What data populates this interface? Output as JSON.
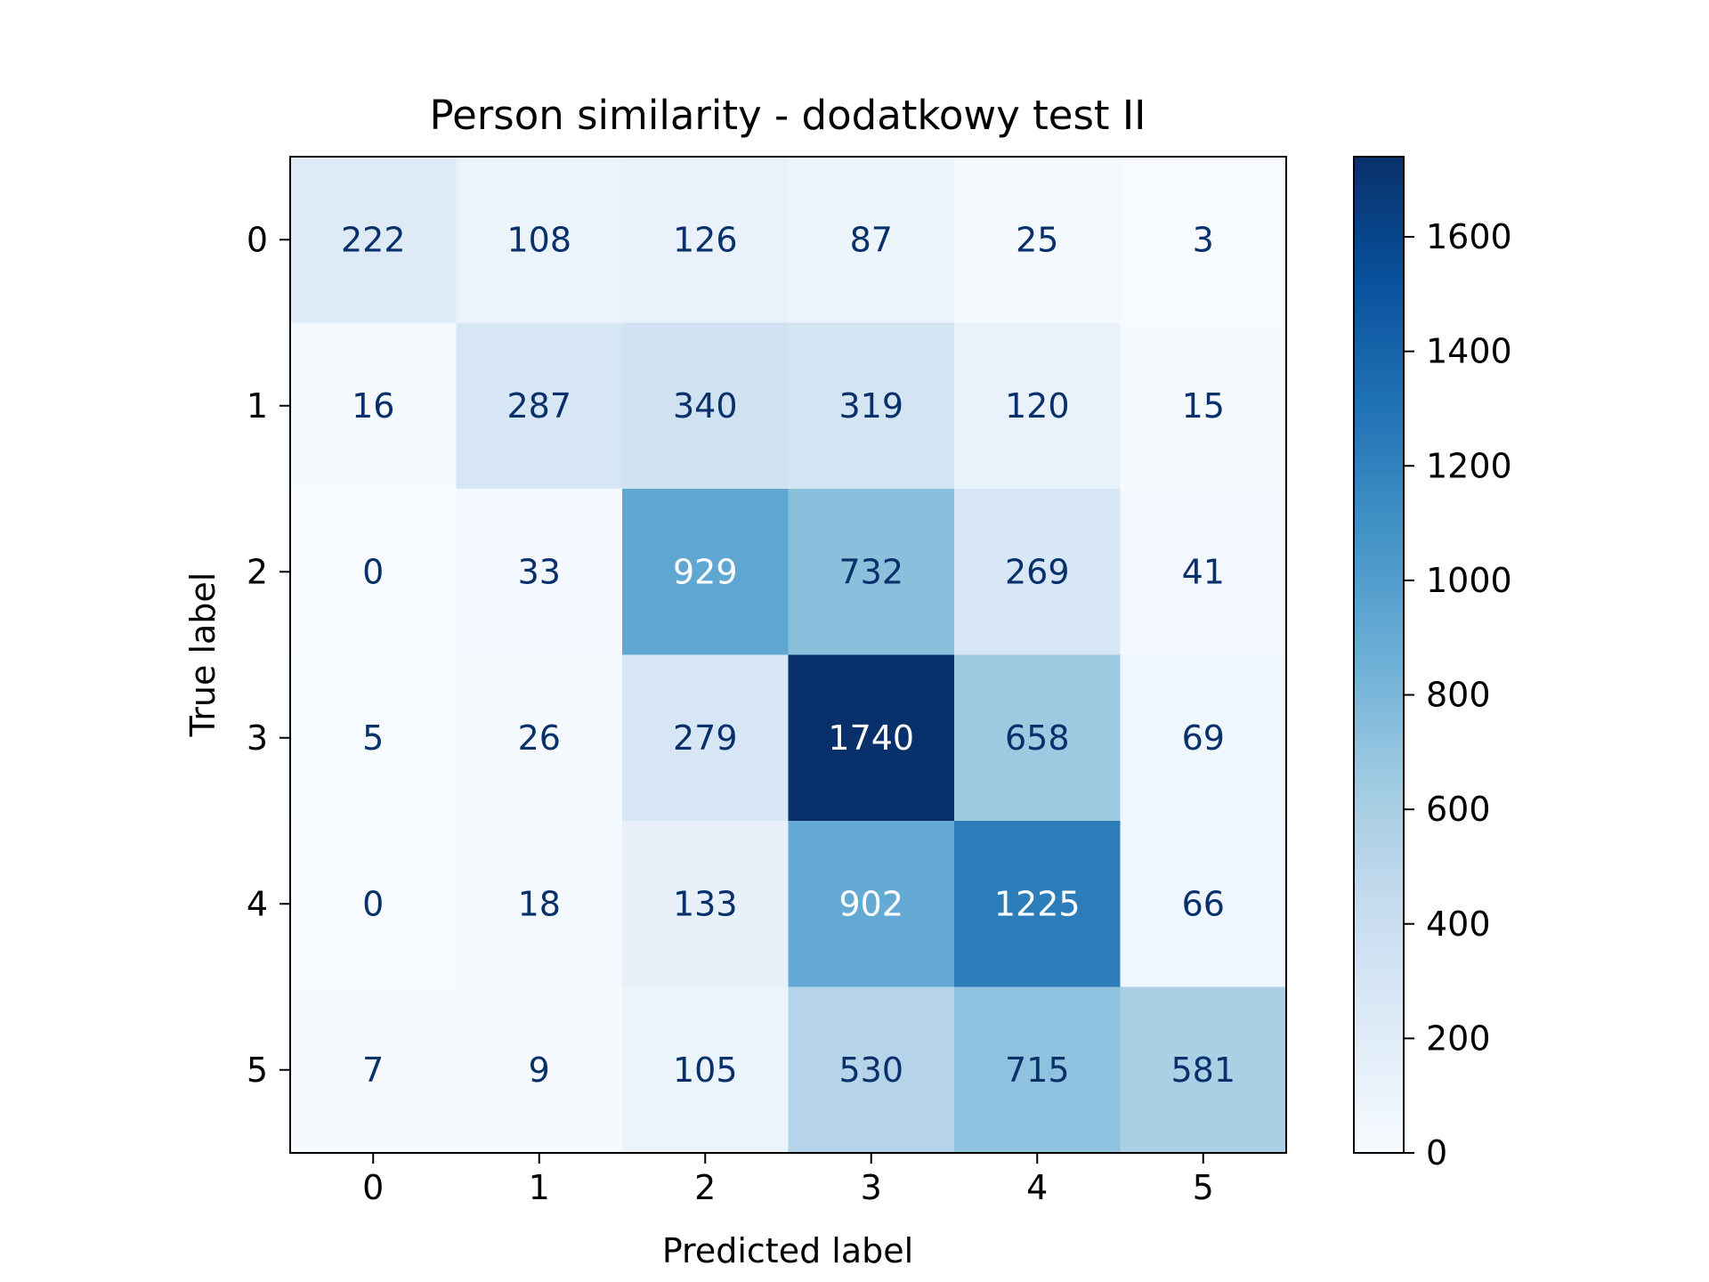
{
  "chart_data": {
    "type": "heatmap",
    "title": "Person similarity - dodatkowy test II",
    "xlabel": "Predicted label",
    "ylabel": "True label",
    "x_categories": [
      "0",
      "1",
      "2",
      "3",
      "4",
      "5"
    ],
    "y_categories": [
      "0",
      "1",
      "2",
      "3",
      "4",
      "5"
    ],
    "matrix": [
      [
        222,
        108,
        126,
        87,
        25,
        3
      ],
      [
        16,
        287,
        340,
        319,
        120,
        15
      ],
      [
        0,
        33,
        929,
        732,
        269,
        41
      ],
      [
        5,
        26,
        279,
        1740,
        658,
        69
      ],
      [
        0,
        18,
        133,
        902,
        1225,
        66
      ],
      [
        7,
        9,
        105,
        530,
        715,
        581
      ]
    ],
    "colormap": "Blues",
    "colorbar": {
      "range": [
        0,
        1740
      ],
      "ticks": [
        "0",
        "200",
        "400",
        "600",
        "800",
        "1000",
        "1200",
        "1400",
        "1600"
      ]
    },
    "text_color_light": "#ffffff",
    "text_color_dark": "#08306b"
  }
}
